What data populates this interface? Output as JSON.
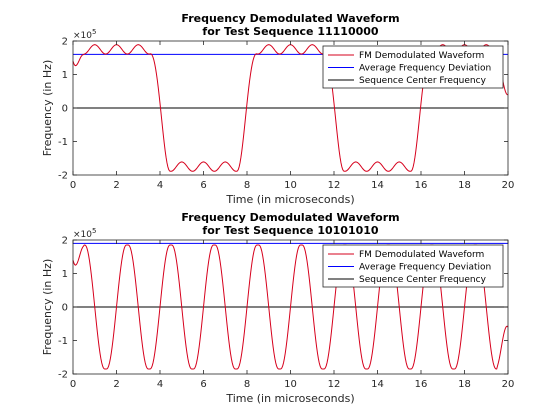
{
  "colors": {
    "background": "#ffffff",
    "axes": "#262626",
    "fm_waveform": "#d6001c",
    "average_deviation": "#0000ff",
    "center_frequency": "#000000",
    "legend_border": "#262626"
  },
  "chart_data": [
    {
      "type": "line",
      "title": [
        "Frequency Demodulated Waveform",
        "for Test Sequence 11110000"
      ],
      "xlabel": "Time (in microseconds)",
      "ylabel": "Frequency (in Hz)",
      "y_exponent_label": "×10",
      "y_exponent_power": "5",
      "xlim": [
        0,
        20
      ],
      "ylim": [
        -200000,
        200000
      ],
      "xticks": [
        0,
        2,
        4,
        6,
        8,
        10,
        12,
        14,
        16,
        18,
        20
      ],
      "xtick_labels": [
        "0",
        "2",
        "4",
        "6",
        "8",
        "10",
        "12",
        "14",
        "16",
        "18",
        "20"
      ],
      "yticks": [
        -200000,
        -100000,
        0,
        100000,
        200000
      ],
      "ytick_labels": [
        "-2",
        "-1",
        "0",
        "1",
        "2"
      ],
      "grid": false,
      "legend_position": "top-right",
      "sequence": "11110000",
      "bit_period_us": 1,
      "series": [
        {
          "name": "FM Demodulated Waveform",
          "color": "#d6001c",
          "kind": "demodulated",
          "peak_deviation_hz": 175000,
          "ripple_hz": 14000,
          "start_value_hz": 140000,
          "end_value_hz": 40000
        },
        {
          "name": "Average Frequency Deviation",
          "color": "#0000ff",
          "kind": "constant",
          "value_hz": 160000
        },
        {
          "name": "Sequence Center Frequency",
          "color": "#000000",
          "kind": "constant",
          "value_hz": 0
        }
      ]
    },
    {
      "type": "line",
      "title": [
        "Frequency Demodulated Waveform",
        "for Test Sequence 10101010"
      ],
      "xlabel": "Time (in microseconds)",
      "ylabel": "Frequency (in Hz)",
      "y_exponent_label": "×10",
      "y_exponent_power": "5",
      "xlim": [
        0,
        20
      ],
      "ylim": [
        -200000,
        200000
      ],
      "xticks": [
        0,
        2,
        4,
        6,
        8,
        10,
        12,
        14,
        16,
        18,
        20
      ],
      "xtick_labels": [
        "0",
        "2",
        "4",
        "6",
        "8",
        "10",
        "12",
        "14",
        "16",
        "18",
        "20"
      ],
      "yticks": [
        -200000,
        -100000,
        0,
        100000,
        200000
      ],
      "ytick_labels": [
        "-2",
        "-1",
        "0",
        "1",
        "2"
      ],
      "grid": false,
      "legend_position": "top-right",
      "sequence": "10101010",
      "bit_period_us": 1,
      "series": [
        {
          "name": "FM Demodulated Waveform",
          "color": "#d6001c",
          "kind": "demodulated",
          "peak_deviation_hz": 185000,
          "ripple_hz": 0,
          "start_value_hz": 140000,
          "end_value_hz": -60000
        },
        {
          "name": "Average Frequency Deviation",
          "color": "#0000ff",
          "kind": "constant",
          "value_hz": 190000
        },
        {
          "name": "Sequence Center Frequency",
          "color": "#000000",
          "kind": "constant",
          "value_hz": 0
        }
      ]
    }
  ]
}
